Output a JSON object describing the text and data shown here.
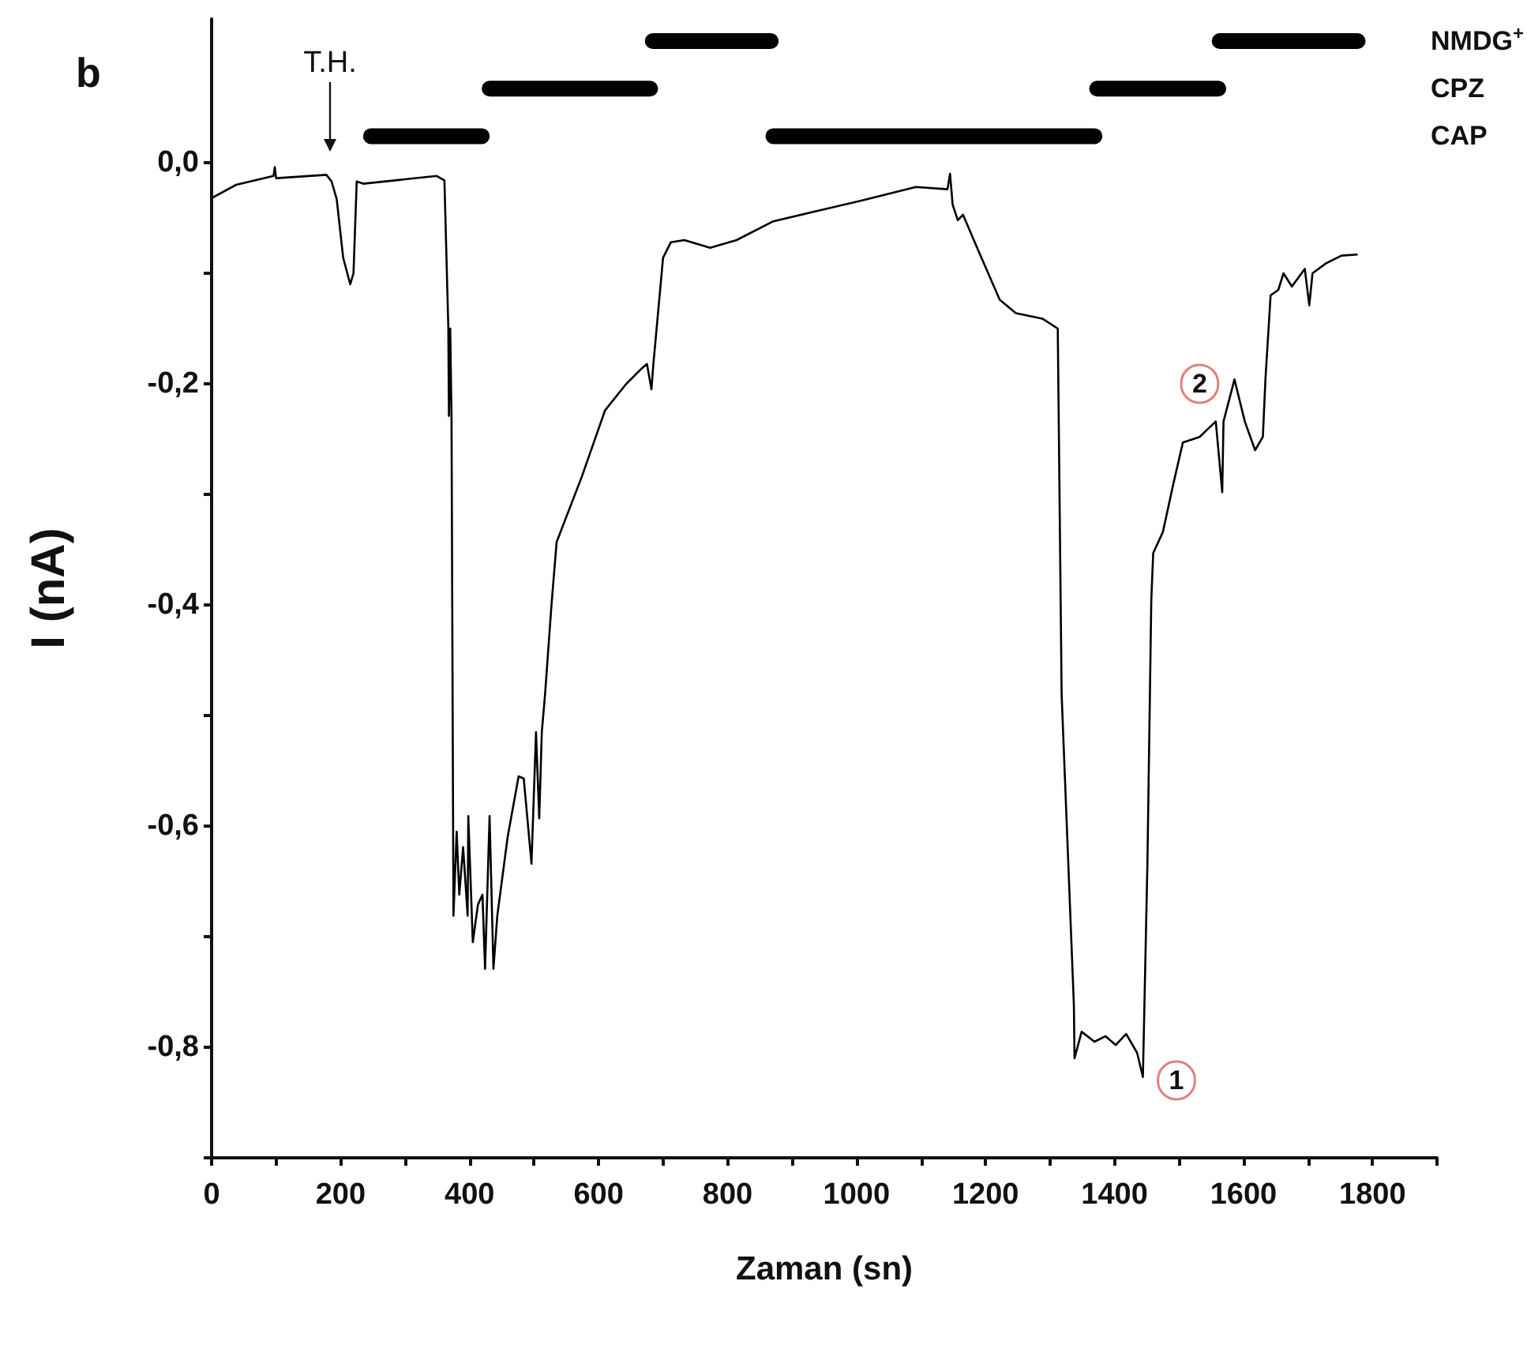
{
  "chart_data": {
    "type": "line",
    "xlabel": "Zaman (sn)",
    "ylabel": "I (nA)",
    "annotations": [
      "b",
      "T.H.",
      {
        "text": "1",
        "x": 1496,
        "y": -0.83
      },
      {
        "text": "2",
        "x": 1532,
        "y": -0.2
      }
    ],
    "xlim": [
      0,
      1900
    ],
    "ylim": [
      -0.9,
      0.13
    ],
    "xticks": [
      0,
      {
        "value": 100,
        "label": null
      },
      200,
      {
        "value": 300,
        "label": null
      },
      400,
      {
        "value": 500,
        "label": null
      },
      600,
      {
        "value": 700,
        "label": null
      },
      800,
      {
        "value": 900,
        "label": null
      },
      1000,
      {
        "value": 1100,
        "label": null
      },
      1200,
      {
        "value": 1300,
        "label": null
      },
      1400,
      {
        "value": 1500,
        "label": null
      },
      1600,
      {
        "value": 1700,
        "label": null
      },
      1800,
      {
        "value": 1900,
        "label": null
      }
    ],
    "yticks": [
      {
        "value": 0,
        "label": "0,0"
      },
      {
        "value": -0.1,
        "label": null
      },
      {
        "value": -0.2,
        "label": "-0,2"
      },
      {
        "value": -0.3,
        "label": null
      },
      {
        "value": -0.4,
        "label": "-0,4"
      },
      {
        "value": -0.5,
        "label": null
      },
      {
        "value": -0.6,
        "label": "-0,6"
      },
      {
        "value": -0.7,
        "label": null
      },
      {
        "value": -0.8,
        "label": "-0,8"
      },
      {
        "value": -0.9,
        "label": null
      }
    ],
    "grid": false,
    "legend": false,
    "marker": "none",
    "line_style": "solid",
    "series": [
      {
        "name": "CAP",
        "color": "#000000",
        "x": [
          247,
          419,
          420,
          871,
          1369
        ],
        "values": [
          0.024,
          0.024,
          null,
          0.024,
          0.024
        ]
      },
      {
        "name": "CPZ",
        "color": "#000000",
        "x": [
          431,
          680,
          681,
          1373,
          1561
        ],
        "values": [
          0.067,
          0.067,
          null,
          0.067,
          0.067
        ]
      },
      {
        "name": "NMDG$^{+}$",
        "color": "#000000",
        "x": [
          684,
          867,
          868,
          1563,
          1777
        ],
        "values": [
          0.11,
          0.11,
          null,
          0.11,
          0.11
        ]
      },
      {
        "color": "#000000",
        "x": [
          0,
          38,
          96,
          98,
          100,
          178,
          186,
          194,
          204,
          215,
          220,
          225,
          235,
          349,
          361,
          367,
          368,
          370,
          372,
          375,
          380,
          384,
          390,
          397,
          398,
          405,
          413,
          420,
          424,
          431,
          437,
          443,
          459,
          476,
          484,
          496,
          503,
          508,
          512,
          517,
          527,
          535,
          574,
          610,
          643,
          667,
          675,
          682,
          685,
          700,
          712,
          733,
          773,
          814,
          871,
          929,
          1010,
          1092,
          1141,
          1145,
          1149,
          1157,
          1165,
          1190,
          1222,
          1247,
          1288,
          1312,
          1318,
          1337,
          1338,
          1349,
          1369,
          1386,
          1402,
          1418,
          1435,
          1444,
          1451,
          1457,
          1460,
          1475,
          1491,
          1506,
          1532,
          1557,
          1567,
          1569,
          1586,
          1602,
          1618,
          1630,
          1634,
          1642,
          1654,
          1662,
          1675,
          1695,
          1702,
          1707,
          1728,
          1752,
          1777
        ],
        "values": [
          -0.032,
          -0.02,
          -0.012,
          -0.004,
          -0.014,
          -0.011,
          -0.017,
          -0.033,
          -0.086,
          -0.11,
          -0.1,
          -0.017,
          -0.019,
          -0.012,
          -0.016,
          -0.148,
          -0.229,
          -0.15,
          -0.23,
          -0.681,
          -0.605,
          -0.662,
          -0.619,
          -0.681,
          -0.591,
          -0.705,
          -0.671,
          -0.662,
          -0.729,
          -0.591,
          -0.729,
          -0.681,
          -0.61,
          -0.555,
          -0.557,
          -0.634,
          -0.515,
          -0.593,
          -0.515,
          -0.481,
          -0.4,
          -0.343,
          -0.284,
          -0.224,
          -0.2,
          -0.186,
          -0.182,
          -0.205,
          -0.182,
          -0.086,
          -0.072,
          -0.07,
          -0.077,
          -0.07,
          -0.053,
          -0.045,
          -0.034,
          -0.022,
          -0.024,
          -0.01,
          -0.038,
          -0.052,
          -0.047,
          -0.081,
          -0.124,
          -0.136,
          -0.141,
          -0.15,
          -0.481,
          -0.762,
          -0.81,
          -0.786,
          -0.795,
          -0.79,
          -0.798,
          -0.788,
          -0.805,
          -0.827,
          -0.634,
          -0.396,
          -0.353,
          -0.334,
          -0.291,
          -0.253,
          -0.248,
          -0.234,
          -0.298,
          -0.234,
          -0.196,
          -0.234,
          -0.26,
          -0.248,
          -0.196,
          -0.12,
          -0.115,
          -0.1,
          -0.112,
          -0.096,
          -0.129,
          -0.1,
          -0.091,
          -0.084,
          -0.083
        ]
      }
    ]
  }
}
